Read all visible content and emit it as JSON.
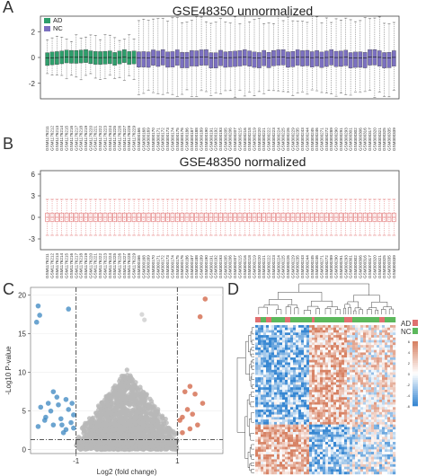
{
  "panels": {
    "a": {
      "letter": "A",
      "title": "GSE48350 unnormalized"
    },
    "b": {
      "letter": "B",
      "title": "GSE48350 normalized"
    },
    "c": {
      "letter": "C"
    },
    "d": {
      "letter": "D"
    }
  },
  "legend": {
    "ad": "AD",
    "nc": "NC"
  },
  "colors": {
    "ad": "#2e9e6b",
    "nc": "#7b70c0",
    "normalized": "#e07070",
    "up": "#d06040",
    "down": "#3a86c0",
    "ns": "#b8b8b8"
  },
  "samples": [
    "GSM1176211",
    "GSM1176212",
    "GSM1176213",
    "GSM1176214",
    "GSM1176215",
    "GSM1176216",
    "GSM1176217",
    "GSM1176218",
    "GSM1176219",
    "GSM1176220",
    "GSM1176221",
    "GSM1176222",
    "GSM1176223",
    "GSM1176224",
    "GSM1176225",
    "GSM1176226",
    "GSM1176227",
    "GSM1176228",
    "GSM1176229",
    "GSM300166",
    "GSM300168",
    "GSM300169",
    "GSM300170",
    "GSM300171",
    "GSM300172",
    "GSM300173",
    "GSM300174",
    "GSM300175",
    "GSM300176",
    "GSM300186",
    "GSM300187",
    "GSM300188",
    "GSM300189",
    "GSM300190",
    "GSM300191",
    "GSM300192",
    "GSM300193",
    "GSM300205",
    "GSM300206",
    "GSM300207",
    "GSM300215",
    "GSM300216",
    "GSM300218",
    "GSM300219",
    "GSM300220",
    "GSM300221",
    "GSM300222",
    "GSM300223",
    "GSM300224",
    "GSM300225",
    "GSM300226",
    "GSM300229",
    "GSM300235",
    "GSM300243",
    "GSM300244",
    "GSM300245",
    "GSM300246",
    "GSM300271",
    "GSM300272",
    "GSM300289",
    "GSM300290",
    "GSM300291",
    "GSM300293",
    "GSM300301",
    "GSM300302",
    "GSM300306",
    "GSM300316",
    "GSM300317",
    "GSM300320",
    "GSM300321",
    "GSM300325",
    "GSM300335",
    "GSM300339"
  ],
  "chart_data": [
    {
      "panel": "A",
      "type": "box",
      "title": "GSE48350 unnormalized",
      "ylim": [
        -3.2,
        3.2
      ],
      "yticks": [
        2,
        0,
        -2
      ],
      "legend": [
        "AD",
        "NC"
      ],
      "groups_in_order": {
        "AD": 19,
        "NC": 54
      },
      "median": 0,
      "ad_box": {
        "q1": -0.5,
        "q3": 0.5,
        "whisker_low": -1.5,
        "whisker_high": 1.5
      },
      "nc_box": {
        "q1": -0.7,
        "q3": 0.5,
        "whisker_low": -2.8,
        "whisker_high": 2.9
      }
    },
    {
      "panel": "B",
      "type": "box",
      "title": "GSE48350 normalized",
      "ylim": [
        -4.5,
        6.5
      ],
      "yticks": [
        6,
        3,
        0,
        -3
      ],
      "box": {
        "q1": -0.6,
        "median": 0,
        "q3": 0.6,
        "whisker_low": -2.5,
        "whisker_high": 2.5
      }
    },
    {
      "panel": "C",
      "type": "scatter",
      "xlabel": "Log2 (fold change)",
      "ylabel": "-Log10 P-value",
      "xticks": [
        -1,
        1
      ],
      "yticks": [
        0,
        5,
        10,
        15,
        20
      ],
      "xlim": [
        -1.9,
        1.9
      ],
      "ylim": [
        -0.5,
        21
      ],
      "thresholds": {
        "fold_change": [
          -1,
          1
        ],
        "p_value_line": 1.3
      },
      "down_points": [
        [
          -1.75,
          18.6
        ],
        [
          -1.72,
          17.4
        ],
        [
          -1.78,
          16.5
        ],
        [
          -1.15,
          18.2
        ],
        [
          -1.45,
          7.5
        ],
        [
          -1.55,
          6.0
        ],
        [
          -1.7,
          5.5
        ],
        [
          -1.35,
          5.8
        ],
        [
          -1.2,
          6.5
        ],
        [
          -1.6,
          4.2
        ],
        [
          -1.3,
          4.0
        ],
        [
          -1.1,
          3.5
        ],
        [
          -1.45,
          3.2
        ],
        [
          -1.75,
          3.0
        ],
        [
          -1.2,
          2.6
        ],
        [
          -1.05,
          4.5
        ],
        [
          -1.25,
          2.2
        ],
        [
          -1.05,
          2.8
        ],
        [
          -1.15,
          5.2
        ],
        [
          -1.5,
          5.0
        ],
        [
          -1.38,
          6.8
        ],
        [
          -1.62,
          3.8
        ],
        [
          -1.08,
          6.0
        ],
        [
          -1.28,
          3.2
        ]
      ],
      "up_points": [
        [
          1.55,
          19.5
        ],
        [
          1.45,
          17.2
        ],
        [
          1.25,
          8.2
        ],
        [
          1.35,
          7.2
        ],
        [
          1.15,
          7.5
        ],
        [
          1.5,
          6.0
        ],
        [
          1.2,
          5.2
        ],
        [
          1.1,
          4.2
        ],
        [
          1.4,
          3.2
        ],
        [
          1.05,
          3.8
        ],
        [
          1.25,
          2.7
        ],
        [
          1.1,
          2.2
        ],
        [
          1.3,
          4.6
        ]
      ],
      "ns_highlights": [
        [
          0.3,
          17.5
        ],
        [
          0.35,
          16.8
        ]
      ]
    },
    {
      "panel": "D",
      "type": "heatmap",
      "legend": [
        "AD",
        "NC"
      ],
      "color_scale": [
        -6,
        6
      ],
      "color_ticks": [
        6,
        4,
        2,
        0,
        -2,
        -4,
        -6
      ]
    }
  ]
}
